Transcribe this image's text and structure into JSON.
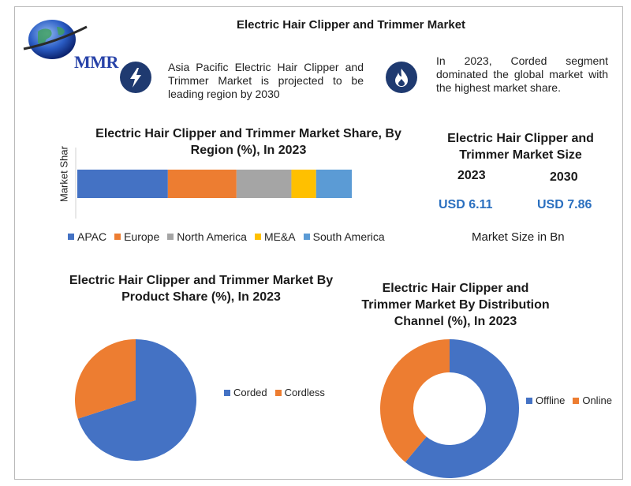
{
  "header": {
    "title": "Electric Hair Clipper and Trimmer Market",
    "logo_text": "MMR"
  },
  "notes": [
    {
      "icon": "lightning-icon",
      "text": "Asia Pacific Electric Hair Clipper and Trimmer Market is projected to be leading region by 2030"
    },
    {
      "icon": "flame-icon",
      "text": "In 2023, Corded segment dominated the global market with the highest market share."
    }
  ],
  "market_size": {
    "title": "Electric Hair Clipper and Trimmer Market Size",
    "year1": "2023",
    "year2": "2030",
    "value1": "USD 6.11",
    "value2": "USD 7.86",
    "unit_label": "Market Size in Bn"
  },
  "colors": {
    "blue": "#4472c4",
    "orange": "#ed7d31",
    "gray": "#a5a5a5",
    "yellow": "#ffc000",
    "lightblue": "#5b9bd5",
    "navy": "#1f3a70",
    "value_blue": "#2a6fbf"
  },
  "chart_data": [
    {
      "type": "bar",
      "orientation": "horizontal-stacked",
      "title": "Electric Hair Clipper and Trimmer Market Share, By Region (%), In 2023",
      "ylabel": "Market Share",
      "series": [
        {
          "name": "APAC",
          "values": [
            33
          ]
        },
        {
          "name": "Europe",
          "values": [
            25
          ]
        },
        {
          "name": "North America",
          "values": [
            20
          ]
        },
        {
          "name": "ME&A",
          "values": [
            9
          ]
        },
        {
          "name": "South America",
          "values": [
            13
          ]
        }
      ],
      "legend": "bottom"
    },
    {
      "type": "pie",
      "title": "Electric Hair Clipper and Trimmer Market By Product Share (%), In 2023",
      "categories": [
        "Corded",
        "Cordless"
      ],
      "values": [
        70,
        30
      ],
      "legend": "right"
    },
    {
      "type": "pie",
      "variant": "donut",
      "title": "Electric Hair Clipper and Trimmer Market By Distribution Channel (%), In 2023",
      "categories": [
        "Offline",
        "Online"
      ],
      "values": [
        61,
        39
      ],
      "legend": "right"
    }
  ]
}
